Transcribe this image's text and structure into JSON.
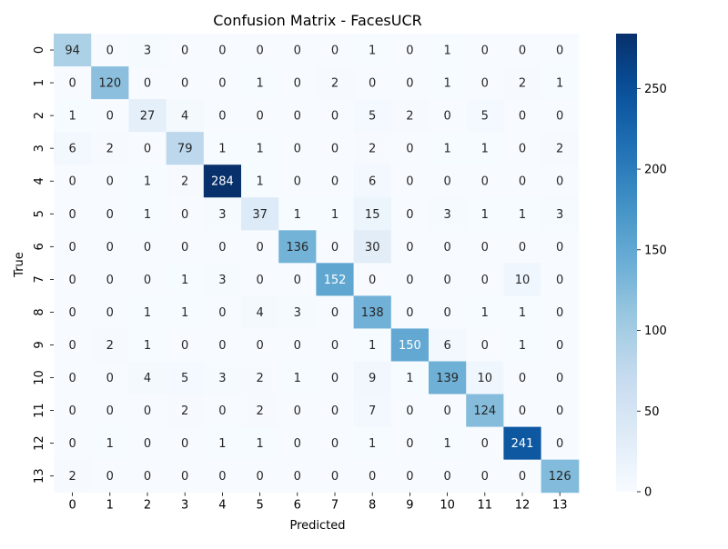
{
  "chart_data": {
    "type": "heatmap",
    "title": "Confusion Matrix - FacesUCR",
    "xlabel": "Predicted",
    "ylabel": "True",
    "x_labels": [
      "0",
      "1",
      "2",
      "3",
      "4",
      "5",
      "6",
      "7",
      "8",
      "9",
      "10",
      "11",
      "12",
      "13"
    ],
    "y_labels": [
      "0",
      "1",
      "2",
      "3",
      "4",
      "5",
      "6",
      "7",
      "8",
      "9",
      "10",
      "11",
      "12",
      "13"
    ],
    "values": [
      [
        94,
        0,
        3,
        0,
        0,
        0,
        0,
        0,
        1,
        0,
        1,
        0,
        0,
        0
      ],
      [
        0,
        120,
        0,
        0,
        0,
        1,
        0,
        2,
        0,
        0,
        1,
        0,
        2,
        1
      ],
      [
        1,
        0,
        27,
        4,
        0,
        0,
        0,
        0,
        5,
        2,
        0,
        5,
        0,
        0
      ],
      [
        6,
        2,
        0,
        79,
        1,
        1,
        0,
        0,
        2,
        0,
        1,
        1,
        0,
        2
      ],
      [
        0,
        0,
        1,
        2,
        284,
        1,
        0,
        0,
        6,
        0,
        0,
        0,
        0,
        0
      ],
      [
        0,
        0,
        1,
        0,
        3,
        37,
        1,
        1,
        15,
        0,
        3,
        1,
        1,
        3
      ],
      [
        0,
        0,
        0,
        0,
        0,
        0,
        136,
        0,
        30,
        0,
        0,
        0,
        0,
        0
      ],
      [
        0,
        0,
        0,
        1,
        3,
        0,
        0,
        152,
        0,
        0,
        0,
        0,
        10,
        0
      ],
      [
        0,
        0,
        1,
        1,
        0,
        4,
        3,
        0,
        138,
        0,
        0,
        1,
        1,
        0
      ],
      [
        0,
        2,
        1,
        0,
        0,
        0,
        0,
        0,
        1,
        150,
        6,
        0,
        1,
        0
      ],
      [
        0,
        0,
        4,
        5,
        3,
        2,
        1,
        0,
        9,
        1,
        139,
        10,
        0,
        0
      ],
      [
        0,
        0,
        0,
        2,
        0,
        2,
        0,
        0,
        7,
        0,
        0,
        124,
        0,
        0
      ],
      [
        0,
        1,
        0,
        0,
        1,
        1,
        0,
        0,
        1,
        0,
        1,
        0,
        241,
        0
      ],
      [
        2,
        0,
        0,
        0,
        0,
        0,
        0,
        0,
        0,
        0,
        0,
        0,
        0,
        126
      ]
    ],
    "colorbar": {
      "min": 0,
      "max": 284,
      "ticks": [
        0,
        50,
        100,
        150,
        200,
        250
      ]
    },
    "colormap": "Blues",
    "annotate_light_text_threshold": 142
  }
}
